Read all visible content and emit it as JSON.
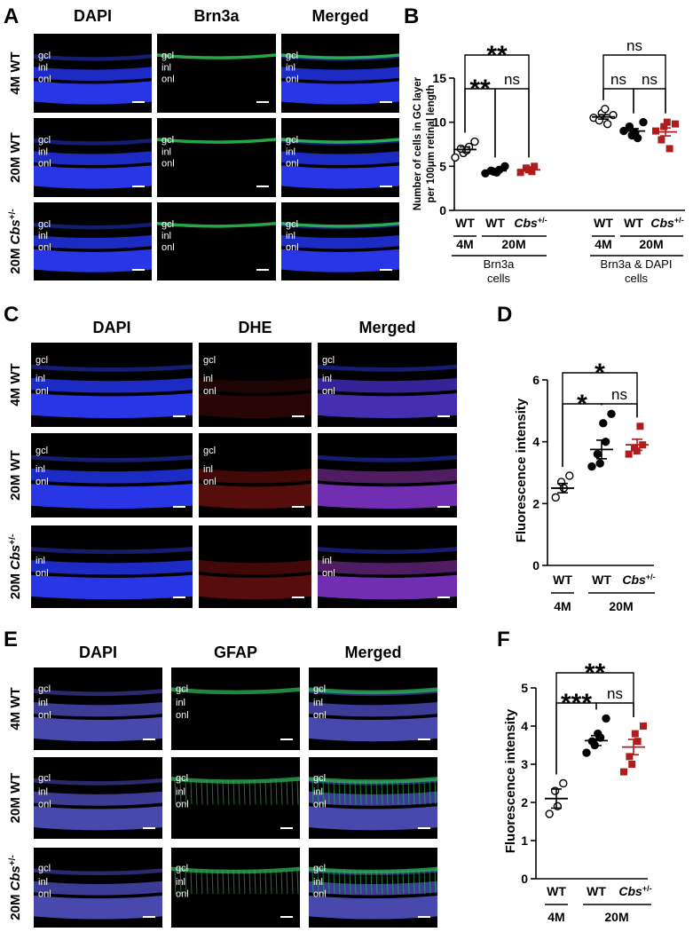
{
  "panels": [
    {
      "letter": "A",
      "columns": [
        "DAPI",
        "Brn3a",
        "Merged"
      ],
      "rows": [
        {
          "label": {
            "text": "4M WT"
          },
          "cells": [
            [
              "gcl",
              "inl",
              "onl"
            ],
            [
              "gcl",
              "inl",
              "onl"
            ],
            [
              "gcl",
              "inl",
              "onl"
            ]
          ]
        },
        {
          "label": {
            "text": "20M WT"
          },
          "cells": [
            [
              "gcl",
              "inl",
              "onl"
            ],
            [
              "gcl",
              "inl",
              "onl"
            ],
            [
              "gcl",
              "inl",
              "onl"
            ]
          ]
        },
        {
          "label": {
            "text": "20M",
            "italic": "Cbs",
            "sup": "+/-"
          },
          "cells": [
            [
              "gcl",
              "inl",
              "onl"
            ],
            [
              "gcl",
              "inl",
              "onl"
            ],
            [
              "gcl",
              "inl",
              "onl"
            ]
          ]
        }
      ]
    },
    {
      "letter": "C",
      "columns": [
        "DAPI",
        "DHE",
        "Merged"
      ],
      "rows": [
        {
          "label": {
            "text": "4M WT"
          },
          "cells": [
            [
              "gcl",
              "inl",
              "onl"
            ],
            [
              "gcl",
              "inl",
              "onl"
            ],
            [
              "gcl",
              "inl",
              "onl"
            ]
          ]
        },
        {
          "label": {
            "text": "20M WT"
          },
          "cells": [
            [
              "gcl",
              "inl",
              "onl"
            ],
            [
              "gcl",
              "inl",
              "onl"
            ],
            []
          ]
        },
        {
          "label": {
            "text": "20M",
            "italic": "Cbs",
            "sup": "+/-"
          },
          "cells": [
            [
              "inl",
              "onl"
            ],
            [],
            [
              "inl",
              "onl"
            ]
          ]
        }
      ]
    },
    {
      "letter": "E",
      "columns": [
        "DAPI",
        "GFAP",
        "Merged"
      ],
      "rows": [
        {
          "label": {
            "text": "4M WT"
          },
          "cells": [
            [
              "gcl",
              "inl",
              "onl"
            ],
            [
              "gcl",
              "inl",
              "onl"
            ],
            [
              "gcl",
              "inl",
              "onl"
            ]
          ]
        },
        {
          "label": {
            "text": "20M WT"
          },
          "cells": [
            [
              "gcl",
              "inl",
              "onl"
            ],
            [
              "gcl",
              "inl",
              "onl"
            ],
            [
              "gcl",
              "inl",
              "onl"
            ]
          ]
        },
        {
          "label": {
            "text": "20M",
            "italic": "Cbs",
            "sup": "+/-"
          },
          "cells": [
            [
              "gcl",
              "inl",
              "onl"
            ],
            [
              "gcl",
              "inl",
              "onl"
            ],
            [
              "gcl",
              "inl",
              "onl"
            ]
          ]
        }
      ]
    }
  ],
  "chart_data": [
    {
      "letter": "B",
      "type": "scatter",
      "ylabel": [
        "Number of cells in GC layer",
        "per 100μm retinal length"
      ],
      "ylim": [
        0,
        15
      ],
      "yticks": [
        0,
        5,
        10,
        15
      ],
      "categories": [
        "WT",
        "WT",
        {
          "text": "Cbs",
          "sup": "+/-"
        },
        "WT",
        "WT",
        {
          "text": "Cbs",
          "sup": "+/-"
        }
      ],
      "ages": [
        "4M",
        "20M",
        "4M",
        "20M"
      ],
      "cell_types": [
        [
          "Brn3a",
          "cells"
        ],
        [
          "Brn3a & DAPI",
          "cells"
        ]
      ],
      "markers": [
        "open-circle",
        "circle",
        "square",
        "open-circle",
        "circle",
        "square"
      ],
      "colors": [
        "#000000",
        "#000000",
        "#b01c1c",
        "#000000",
        "#000000",
        "#b01c1c"
      ],
      "points": [
        [
          6.0,
          6.5,
          7.0,
          7.2,
          6.8,
          7.8
        ],
        [
          4.2,
          4.4,
          4.5,
          4.6,
          4.3,
          5.0
        ],
        [
          4.3,
          4.6,
          4.8,
          5.0,
          4.4
        ],
        [
          10.5,
          11.0,
          10.2,
          9.8,
          11.5,
          10.8
        ],
        [
          9.0,
          8.5,
          9.5,
          8.2,
          8.8,
          10.0
        ],
        [
          9.0,
          9.5,
          8.0,
          7.0,
          10.0,
          9.8
        ]
      ],
      "means": [
        6.9,
        4.5,
        4.6,
        10.6,
        9.0,
        8.9
      ],
      "sems": [
        0.3,
        0.12,
        0.14,
        0.25,
        0.27,
        0.45
      ],
      "significance": [
        "**",
        "**",
        "ns",
        "ns",
        "ns",
        "ns"
      ]
    },
    {
      "letter": "D",
      "type": "scatter",
      "ylabel": [
        "Fluorescence intensity"
      ],
      "ylim": [
        0,
        6
      ],
      "yticks": [
        0,
        2,
        4,
        6
      ],
      "categories": [
        "WT",
        "WT",
        {
          "text": "Cbs",
          "sup": "+/-"
        }
      ],
      "ages": [
        "4M",
        "20M"
      ],
      "markers": [
        "open-circle",
        "circle",
        "square"
      ],
      "colors": [
        "#000000",
        "#000000",
        "#b01c1c"
      ],
      "points": [
        [
          2.2,
          2.5,
          2.7,
          2.9
        ],
        [
          3.2,
          3.3,
          3.6,
          4.0,
          4.6,
          4.9
        ],
        [
          3.6,
          3.7,
          3.8,
          3.9,
          4.5
        ]
      ],
      "means": [
        2.5,
        3.75,
        3.9
      ],
      "sems": [
        0.15,
        0.3,
        0.18
      ],
      "significance": [
        "*",
        "*",
        "ns"
      ]
    },
    {
      "letter": "F",
      "type": "scatter",
      "ylabel": [
        "Fluorescence intensity"
      ],
      "ylim": [
        0,
        5
      ],
      "yticks": [
        0,
        1,
        2,
        3,
        4,
        5
      ],
      "categories": [
        "WT",
        "WT",
        {
          "text": "Cbs",
          "sup": "+/-"
        }
      ],
      "ages": [
        "4M",
        "20M"
      ],
      "markers": [
        "open-circle",
        "circle",
        "square"
      ],
      "colors": [
        "#000000",
        "#000000",
        "#b01c1c"
      ],
      "points": [
        [
          1.7,
          1.9,
          2.3,
          2.5
        ],
        [
          3.3,
          3.5,
          3.6,
          3.7,
          3.8,
          4.2
        ],
        [
          2.8,
          3.0,
          3.2,
          3.6,
          3.8,
          4.0
        ]
      ],
      "means": [
        2.1,
        3.62,
        3.45
      ],
      "sems": [
        0.25,
        0.13,
        0.2
      ],
      "significance": [
        "**",
        "***",
        "ns"
      ]
    }
  ]
}
